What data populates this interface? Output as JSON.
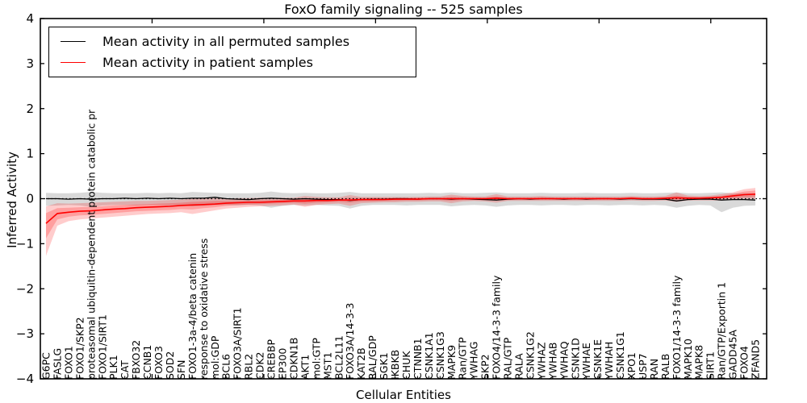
{
  "header": {
    "title": "FoxO family signaling -- 525 samples"
  },
  "legend": {
    "items": [
      {
        "label": "Mean activity in all permuted samples",
        "color": "#000000"
      },
      {
        "label": "Mean activity in patient samples",
        "color": "#ff0000"
      }
    ]
  },
  "chart_data": {
    "type": "line",
    "title": "FoxO family signaling -- 525 samples",
    "xlabel": "Cellular Entities",
    "ylabel": "Inferred Activity",
    "ylim": [
      -4,
      4
    ],
    "yticks": [
      4,
      3,
      2,
      1,
      0,
      -1,
      -2,
      -3,
      -4
    ],
    "grid": false,
    "zero_line": true,
    "legend_position": "upper left",
    "categories": [
      "G6PC",
      "FASLG",
      "FOXO1",
      "FOXO1/SKP2",
      "proteasomal ubiquitin-dependent protein catabolic pr",
      "FOXO1/SIRT1",
      "PLK1",
      "CAT",
      "FBXO32",
      "CCNB1",
      "FOXO3",
      "SOD2",
      "SFN",
      "FOXO1-3a-4/beta catenin",
      "response to oxidative stress",
      "mol:GDP",
      "BCL6",
      "FOXO3A/SIRT1",
      "RBL2",
      "CDK2",
      "CREBBP",
      "EP300",
      "CDKN1B",
      "AKT1",
      "mol:GTP",
      "MST1",
      "BCL2L11",
      "FOXO3A/14-3-3",
      "KAT2B",
      "RAL/GDP",
      "SGK1",
      "IKBKB",
      "CHUK",
      "CTNNB1",
      "CSNK1A1",
      "CSNK1G3",
      "MAPK9",
      "Ran/GTP",
      "YWHAG",
      "SKP2",
      "FOXO4/14-3-3 family",
      "RAL/GTP",
      "RALA",
      "CSNK1G2",
      "YWHAZ",
      "YWHAB",
      "YWHAQ",
      "CSNK1D",
      "YWHAE",
      "CSNK1E",
      "YWHAH",
      "CSNK1G1",
      "XPO1",
      "USP7",
      "RAN",
      "RALB",
      "FOXO1/14-3-3 family",
      "MAPK10",
      "MAPK8",
      "SIRT1",
      "Ran/GTP/Exportin 1",
      "GADD45A",
      "FOXO4",
      "ZFAND5"
    ],
    "series": [
      {
        "name": "Mean activity in all permuted samples",
        "color": "#000000",
        "values": [
          0,
          0,
          -0.01,
          0,
          -0.01,
          0,
          0,
          0.01,
          0,
          0.01,
          0,
          0.01,
          0,
          0.01,
          0.01,
          0.03,
          0,
          -0.01,
          -0.02,
          0,
          0.01,
          0,
          -0.01,
          0,
          -0.01,
          -0.02,
          -0.02,
          -0.04,
          -0.02,
          -0.01,
          -0.01,
          0,
          0,
          -0.01,
          0,
          0,
          -0.01,
          0,
          -0.01,
          -0.02,
          -0.03,
          -0.01,
          0,
          -0.01,
          0,
          0,
          -0.01,
          0,
          -0.01,
          0,
          0,
          -0.01,
          0,
          -0.01,
          -0.01,
          -0.01,
          -0.05,
          -0.02,
          -0.01,
          -0.01,
          -0.03,
          -0.02,
          -0.02,
          -0.03
        ]
      },
      {
        "name": "Mean activity in patient samples",
        "color": "#ff0000",
        "values": [
          -0.55,
          -0.33,
          -0.3,
          -0.28,
          -0.27,
          -0.25,
          -0.23,
          -0.22,
          -0.2,
          -0.19,
          -0.18,
          -0.17,
          -0.15,
          -0.14,
          -0.13,
          -0.12,
          -0.1,
          -0.09,
          -0.08,
          -0.08,
          -0.07,
          -0.06,
          -0.05,
          -0.05,
          -0.04,
          -0.04,
          -0.03,
          -0.03,
          -0.02,
          -0.02,
          -0.02,
          -0.01,
          -0.01,
          -0.01,
          0,
          0,
          0,
          0,
          0,
          0,
          0.01,
          0,
          0,
          0,
          0,
          0,
          0,
          0,
          0,
          0,
          0,
          0,
          0.01,
          0,
          0,
          0.01,
          0.02,
          0.01,
          0.01,
          0.02,
          0.03,
          0.06,
          0.09,
          0.1
        ]
      }
    ],
    "bands": [
      {
        "name": "permuted-range",
        "color": "rgba(130,130,130,0.30)",
        "lower": [
          -0.16,
          -0.15,
          -0.14,
          -0.15,
          -0.18,
          -0.15,
          -0.14,
          -0.14,
          -0.15,
          -0.14,
          -0.14,
          -0.15,
          -0.14,
          -0.17,
          -0.16,
          -0.14,
          -0.14,
          -0.15,
          -0.14,
          -0.15,
          -0.2,
          -0.16,
          -0.14,
          -0.15,
          -0.14,
          -0.15,
          -0.16,
          -0.22,
          -0.16,
          -0.14,
          -0.14,
          -0.14,
          -0.15,
          -0.14,
          -0.14,
          -0.14,
          -0.17,
          -0.15,
          -0.14,
          -0.15,
          -0.18,
          -0.15,
          -0.14,
          -0.14,
          -0.15,
          -0.14,
          -0.14,
          -0.15,
          -0.14,
          -0.14,
          -0.15,
          -0.14,
          -0.14,
          -0.15,
          -0.14,
          -0.15,
          -0.2,
          -0.16,
          -0.14,
          -0.15,
          -0.3,
          -0.2,
          -0.16,
          -0.15
        ],
        "upper": [
          0.13,
          0.12,
          0.12,
          0.13,
          0.15,
          0.13,
          0.12,
          0.12,
          0.12,
          0.13,
          0.12,
          0.13,
          0.12,
          0.15,
          0.14,
          0.13,
          0.12,
          0.12,
          0.12,
          0.13,
          0.16,
          0.13,
          0.12,
          0.13,
          0.12,
          0.12,
          0.13,
          0.15,
          0.12,
          0.12,
          0.12,
          0.12,
          0.12,
          0.12,
          0.13,
          0.12,
          0.14,
          0.12,
          0.12,
          0.13,
          0.14,
          0.12,
          0.12,
          0.12,
          0.13,
          0.12,
          0.12,
          0.12,
          0.13,
          0.12,
          0.12,
          0.12,
          0.13,
          0.12,
          0.12,
          0.13,
          0.14,
          0.12,
          0.12,
          0.13,
          0.14,
          0.12,
          0.12,
          0.12
        ]
      },
      {
        "name": "patient-range-outer",
        "color": "rgba(255,0,0,0.20)",
        "lower": [
          -1.27,
          -0.6,
          -0.5,
          -0.46,
          -0.44,
          -0.42,
          -0.4,
          -0.38,
          -0.36,
          -0.34,
          -0.33,
          -0.32,
          -0.3,
          -0.34,
          -0.3,
          -0.26,
          -0.22,
          -0.2,
          -0.18,
          -0.17,
          -0.16,
          -0.15,
          -0.13,
          -0.18,
          -0.14,
          -0.12,
          -0.11,
          -0.16,
          -0.1,
          -0.09,
          -0.08,
          -0.08,
          -0.07,
          -0.07,
          -0.06,
          -0.06,
          -0.1,
          -0.06,
          -0.05,
          -0.06,
          -0.09,
          -0.05,
          -0.05,
          -0.05,
          -0.05,
          -0.05,
          -0.05,
          -0.05,
          -0.05,
          -0.05,
          -0.05,
          -0.05,
          -0.04,
          -0.05,
          -0.05,
          -0.04,
          -0.07,
          -0.04,
          -0.04,
          -0.04,
          -0.04,
          -0.02,
          0,
          -0.01
        ],
        "upper": [
          -0.17,
          -0.1,
          -0.11,
          -0.1,
          -0.09,
          -0.08,
          -0.07,
          -0.06,
          -0.05,
          -0.05,
          -0.04,
          -0.03,
          -0.02,
          0,
          0.01,
          0.01,
          0,
          0.01,
          0.01,
          0.02,
          0.02,
          0.02,
          0.02,
          0.06,
          0.04,
          0.03,
          0.03,
          0.08,
          0.04,
          0.04,
          0.04,
          0.04,
          0.04,
          0.04,
          0.05,
          0.05,
          0.09,
          0.06,
          0.05,
          0.05,
          0.1,
          0.05,
          0.05,
          0.05,
          0.06,
          0.05,
          0.05,
          0.05,
          0.05,
          0.05,
          0.05,
          0.05,
          0.06,
          0.05,
          0.05,
          0.06,
          0.14,
          0.07,
          0.06,
          0.07,
          0.1,
          0.14,
          0.21,
          0.24
        ]
      },
      {
        "name": "patient-range-inner",
        "color": "rgba(255,0,0,0.22)",
        "lower": [
          -0.88,
          -0.46,
          -0.4,
          -0.37,
          -0.36,
          -0.34,
          -0.32,
          -0.3,
          -0.28,
          -0.27,
          -0.26,
          -0.25,
          -0.23,
          -0.24,
          -0.21,
          -0.19,
          -0.16,
          -0.14,
          -0.13,
          -0.12,
          -0.11,
          -0.1,
          -0.09,
          -0.11,
          -0.09,
          -0.08,
          -0.07,
          -0.09,
          -0.06,
          -0.06,
          -0.05,
          -0.05,
          -0.04,
          -0.04,
          -0.03,
          -0.03,
          -0.05,
          -0.03,
          -0.03,
          -0.03,
          -0.04,
          -0.03,
          -0.02,
          -0.02,
          -0.02,
          -0.02,
          -0.02,
          -0.02,
          -0.02,
          -0.02,
          -0.02,
          -0.02,
          -0.01,
          -0.02,
          -0.02,
          -0.01,
          -0.02,
          -0.01,
          -0.01,
          -0.01,
          0,
          0.01,
          0.03,
          0.04
        ],
        "upper": [
          -0.32,
          -0.21,
          -0.2,
          -0.19,
          -0.18,
          -0.17,
          -0.15,
          -0.14,
          -0.13,
          -0.12,
          -0.11,
          -0.1,
          -0.09,
          -0.07,
          -0.06,
          -0.05,
          -0.05,
          -0.04,
          -0.04,
          -0.03,
          -0.03,
          -0.02,
          -0.02,
          0,
          -0.01,
          0,
          0,
          0.02,
          0.01,
          0.01,
          0.01,
          0.01,
          0.01,
          0.02,
          0.02,
          0.02,
          0.04,
          0.03,
          0.02,
          0.02,
          0.05,
          0.02,
          0.02,
          0.02,
          0.03,
          0.02,
          0.02,
          0.02,
          0.02,
          0.02,
          0.02,
          0.02,
          0.03,
          0.02,
          0.02,
          0.03,
          0.07,
          0.04,
          0.03,
          0.04,
          0.06,
          0.1,
          0.16,
          0.18
        ]
      }
    ]
  }
}
